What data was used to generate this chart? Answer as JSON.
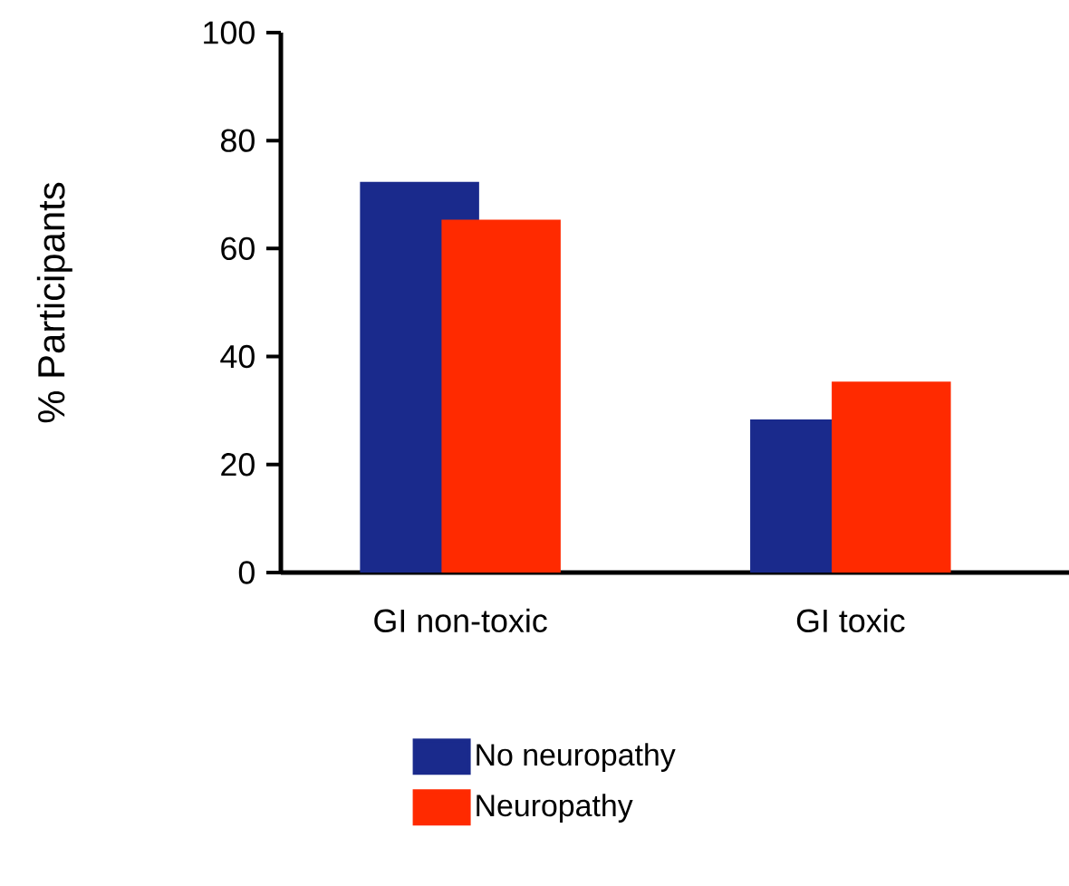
{
  "chart_data": {
    "type": "bar",
    "ylabel": "% Participants",
    "categories": [
      "GI non-toxic",
      "GI toxic"
    ],
    "series": [
      {
        "name": "No neuropathy",
        "color": "#1a2a8c",
        "values": [
          72,
          28
        ]
      },
      {
        "name": "Neuropathy",
        "color": "#ff2a00",
        "values": [
          65,
          35
        ]
      }
    ],
    "ylim": [
      0,
      100
    ],
    "yticks": [
      0,
      20,
      40,
      60,
      80,
      100
    ],
    "grid": false,
    "legend": "bottom"
  }
}
